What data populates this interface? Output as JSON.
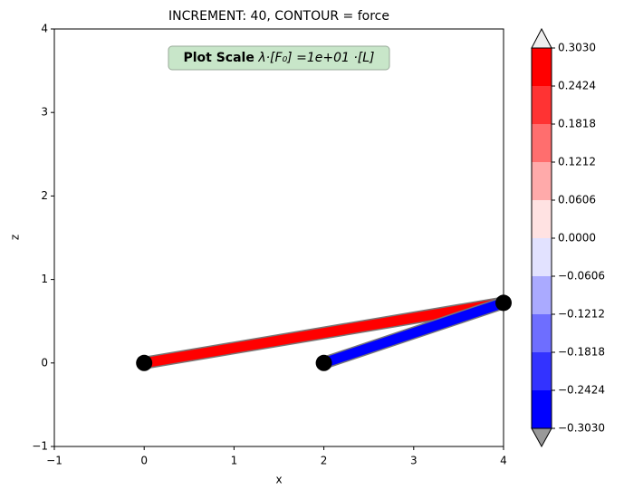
{
  "chart_data": {
    "type": "truss",
    "title": "INCREMENT: 40, CONTOUR = force",
    "x_label": "x",
    "y_label": "z",
    "xlim": [
      -1,
      4
    ],
    "ylim": [
      -1,
      4
    ],
    "xticks": [
      {
        "value": -1,
        "label": "−1"
      },
      0,
      1,
      2,
      3,
      4
    ],
    "yticks": [
      {
        "value": -1,
        "label": "−1"
      },
      0,
      1,
      2,
      3,
      4
    ],
    "annotation": {
      "bold": "Plot Scale",
      "text": "λ·[F₀] =1e+01 ·[L]"
    },
    "nodes": {
      "x": [
        0,
        2,
        4
      ],
      "z": [
        0,
        0,
        0.72
      ]
    },
    "elements": [
      {
        "from": 0,
        "to": 2,
        "value": 0.303
      },
      {
        "from": 1,
        "to": 2,
        "value": -0.303
      }
    ],
    "colorbar": {
      "ticks": [
        {
          "value": -0.303,
          "label": "−0.3030"
        },
        {
          "value": -0.2424,
          "label": "−0.2424"
        },
        {
          "value": -0.1818,
          "label": "−0.1818"
        },
        {
          "value": -0.1212,
          "label": "−0.1212"
        },
        {
          "value": -0.0606,
          "label": "−0.0606"
        },
        {
          "value": 0,
          "label": "0.0000"
        },
        {
          "value": 0.0606,
          "label": "0.0606"
        },
        {
          "value": 0.1212,
          "label": "0.1212"
        },
        {
          "value": 0.1818,
          "label": "0.1818"
        },
        {
          "value": 0.2424,
          "label": "0.2424"
        },
        {
          "value": 0.303,
          "label": "0.3030"
        }
      ],
      "colors": [
        "#0000ff",
        "#3333ff",
        "#6e6eff",
        "#aaaaff",
        "#e2e2ff",
        "#ffe2e2",
        "#ffaaaa",
        "#ff6e6e",
        "#ff3333",
        "#ff0000"
      ],
      "under_color": "#999999",
      "over_color": "#eeeeee"
    }
  }
}
